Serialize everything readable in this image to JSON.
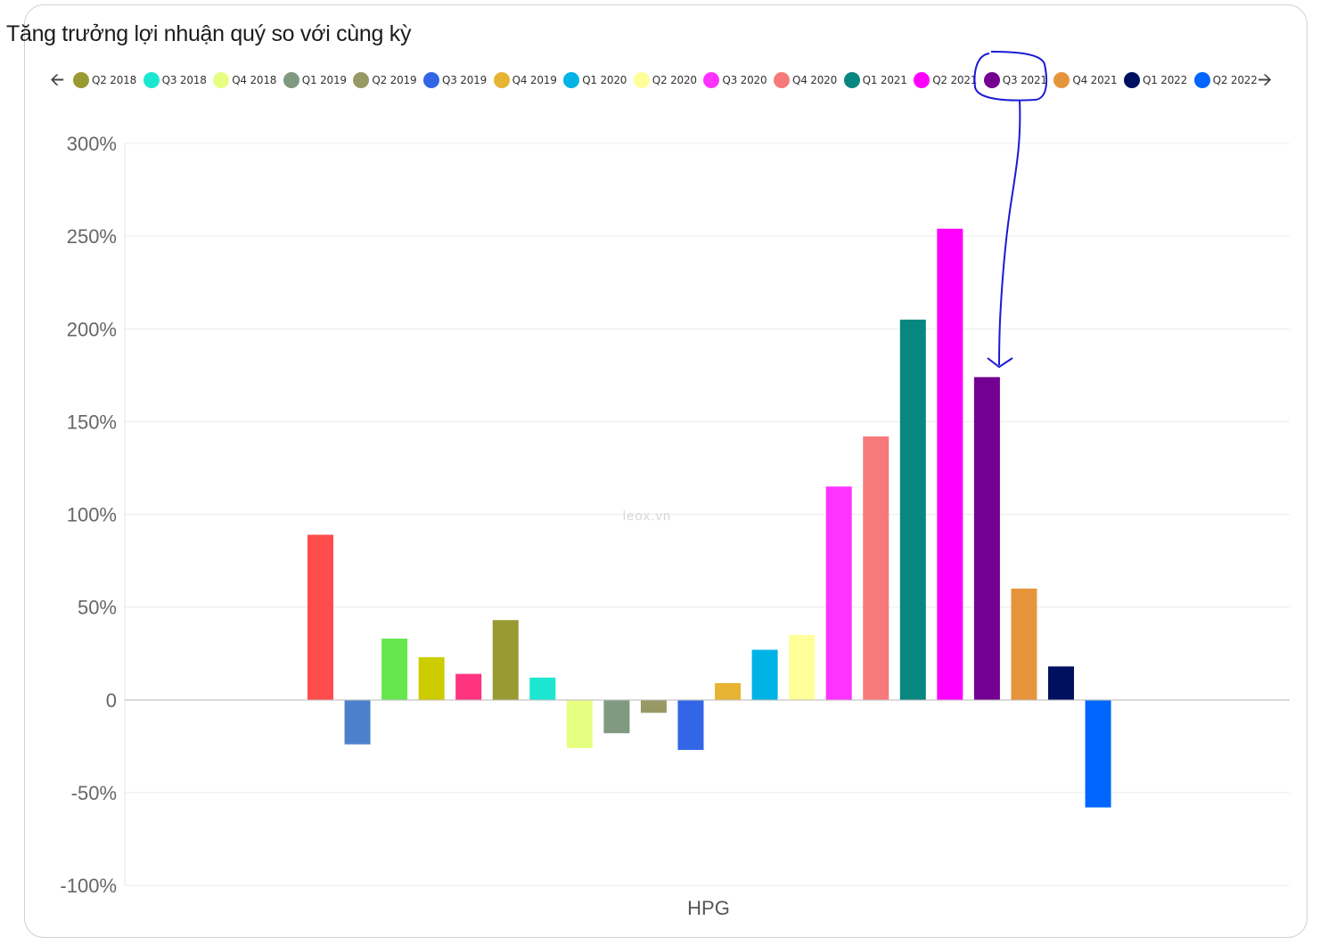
{
  "title": "Tăng trưởng lợi nhuận quý so với cùng kỳ",
  "legend": {
    "prev_icon": "arrow-left-icon",
    "next_icon": "arrow-right-icon",
    "items": [
      {
        "label": "Q2 2018",
        "color": "#9a9a33"
      },
      {
        "label": "Q3 2018",
        "color": "#1de6d0"
      },
      {
        "label": "Q4 2018",
        "color": "#e6ff80"
      },
      {
        "label": "Q1 2019",
        "color": "#7f9a80"
      },
      {
        "label": "Q2 2019",
        "color": "#999966"
      },
      {
        "label": "Q3 2019",
        "color": "#3366e6"
      },
      {
        "label": "Q4 2019",
        "color": "#e6b333"
      },
      {
        "label": "Q1 2020",
        "color": "#00b3e6"
      },
      {
        "label": "Q2 2020",
        "color": "#ffff99"
      },
      {
        "label": "Q3 2020",
        "color": "#ff33ff"
      },
      {
        "label": "Q4 2020",
        "color": "#f77a7a"
      },
      {
        "label": "Q1 2021",
        "color": "#088780"
      },
      {
        "label": "Q2 2021",
        "color": "#ff00ff"
      },
      {
        "label": "Q3 2021",
        "color": "#730091"
      },
      {
        "label": "Q4 2021",
        "color": "#e6943a"
      },
      {
        "label": "Q1 2022",
        "color": "#001060"
      },
      {
        "label": "Q2 2022",
        "color": "#0066ff"
      }
    ]
  },
  "watermark": "leox.vn",
  "chart_data": {
    "type": "bar",
    "title": "Tăng trưởng lợi nhuận quý so với cùng kỳ",
    "xlabel": "HPG",
    "ylabel": "",
    "categories": [
      "HPG"
    ],
    "ylim": [
      -100,
      300
    ],
    "yticks": [
      300,
      250,
      200,
      150,
      100,
      50,
      0,
      -50,
      -100
    ],
    "ytick_labels": [
      "300%",
      "250%",
      "200%",
      "150%",
      "100%",
      "50%",
      "0",
      "-50%",
      "-100%"
    ],
    "grid": true,
    "legend_position": "top",
    "series": [
      {
        "name": "",
        "color": "#ff4c4c",
        "value": 89
      },
      {
        "name": "",
        "color": "#4d80cc",
        "value": -24
      },
      {
        "name": "",
        "color": "#66e64d",
        "value": 33
      },
      {
        "name": "",
        "color": "#cccc00",
        "value": 23
      },
      {
        "name": "",
        "color": "#ff3380",
        "value": 14
      },
      {
        "name": "Q2 2018",
        "color": "#9a9a33",
        "value": 43
      },
      {
        "name": "Q3 2018",
        "color": "#1de6d0",
        "value": 12
      },
      {
        "name": "Q4 2018",
        "color": "#e6ff80",
        "value": -26
      },
      {
        "name": "Q1 2019",
        "color": "#7f9a80",
        "value": -18
      },
      {
        "name": "Q2 2019",
        "color": "#999966",
        "value": -7
      },
      {
        "name": "Q3 2019",
        "color": "#3366e6",
        "value": -27
      },
      {
        "name": "Q4 2019",
        "color": "#e6b333",
        "value": 9
      },
      {
        "name": "Q1 2020",
        "color": "#00b3e6",
        "value": 27
      },
      {
        "name": "Q2 2020",
        "color": "#ffff99",
        "value": 35
      },
      {
        "name": "Q3 2020",
        "color": "#ff33ff",
        "value": 115
      },
      {
        "name": "Q4 2020",
        "color": "#f77a7a",
        "value": 142
      },
      {
        "name": "Q1 2021",
        "color": "#088780",
        "value": 205
      },
      {
        "name": "Q2 2021",
        "color": "#ff00ff",
        "value": 254
      },
      {
        "name": "Q3 2021",
        "color": "#730091",
        "value": 174
      },
      {
        "name": "Q4 2021",
        "color": "#e6943a",
        "value": 60
      },
      {
        "name": "Q1 2022",
        "color": "#001060",
        "value": 18
      },
      {
        "name": "Q2 2022",
        "color": "#0066ff",
        "value": -58
      }
    ]
  }
}
